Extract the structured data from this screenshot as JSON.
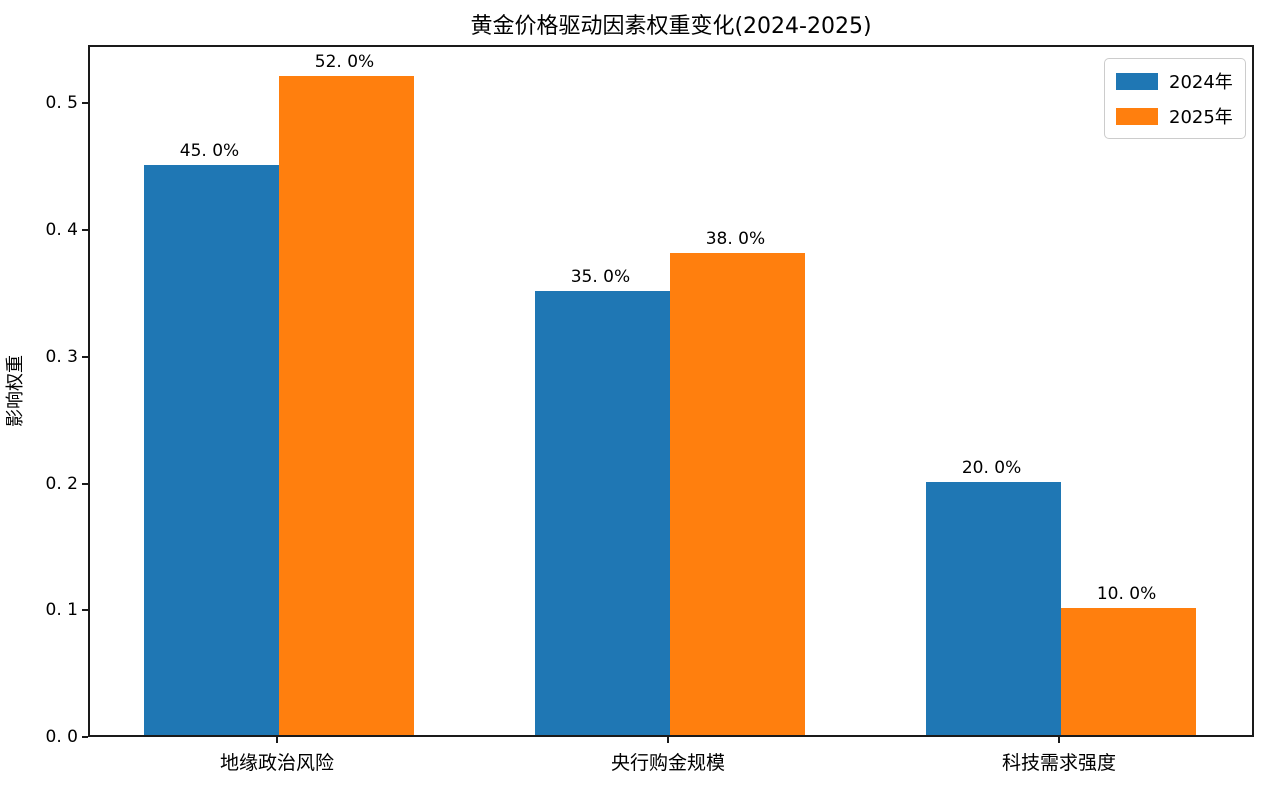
{
  "chart_data": {
    "type": "bar",
    "title": "黄金价格驱动因素权重变化(2024-2025)",
    "xlabel": "",
    "ylabel": "影响权重",
    "categories": [
      "地缘政治风险",
      "央行购金规模",
      "科技需求强度"
    ],
    "series": [
      {
        "name": "2024年",
        "color": "#1f77b4",
        "values": [
          0.45,
          0.35,
          0.2
        ],
        "value_labels": [
          "45. 0%",
          "35. 0%",
          "20. 0%"
        ]
      },
      {
        "name": "2025年",
        "color": "#ff7f0e",
        "values": [
          0.52,
          0.38,
          0.1
        ],
        "value_labels": [
          "52. 0%",
          "38. 0%",
          "10. 0%"
        ]
      }
    ],
    "yticks": {
      "values": [
        0.0,
        0.1,
        0.2,
        0.3,
        0.4,
        0.5
      ],
      "labels": [
        "0. 0",
        "0. 1",
        "0. 2",
        "0. 3",
        "0. 4",
        "0. 5"
      ]
    },
    "ylim": [
      0.0,
      0.546
    ],
    "grid": false,
    "legend_position": "upper right"
  }
}
